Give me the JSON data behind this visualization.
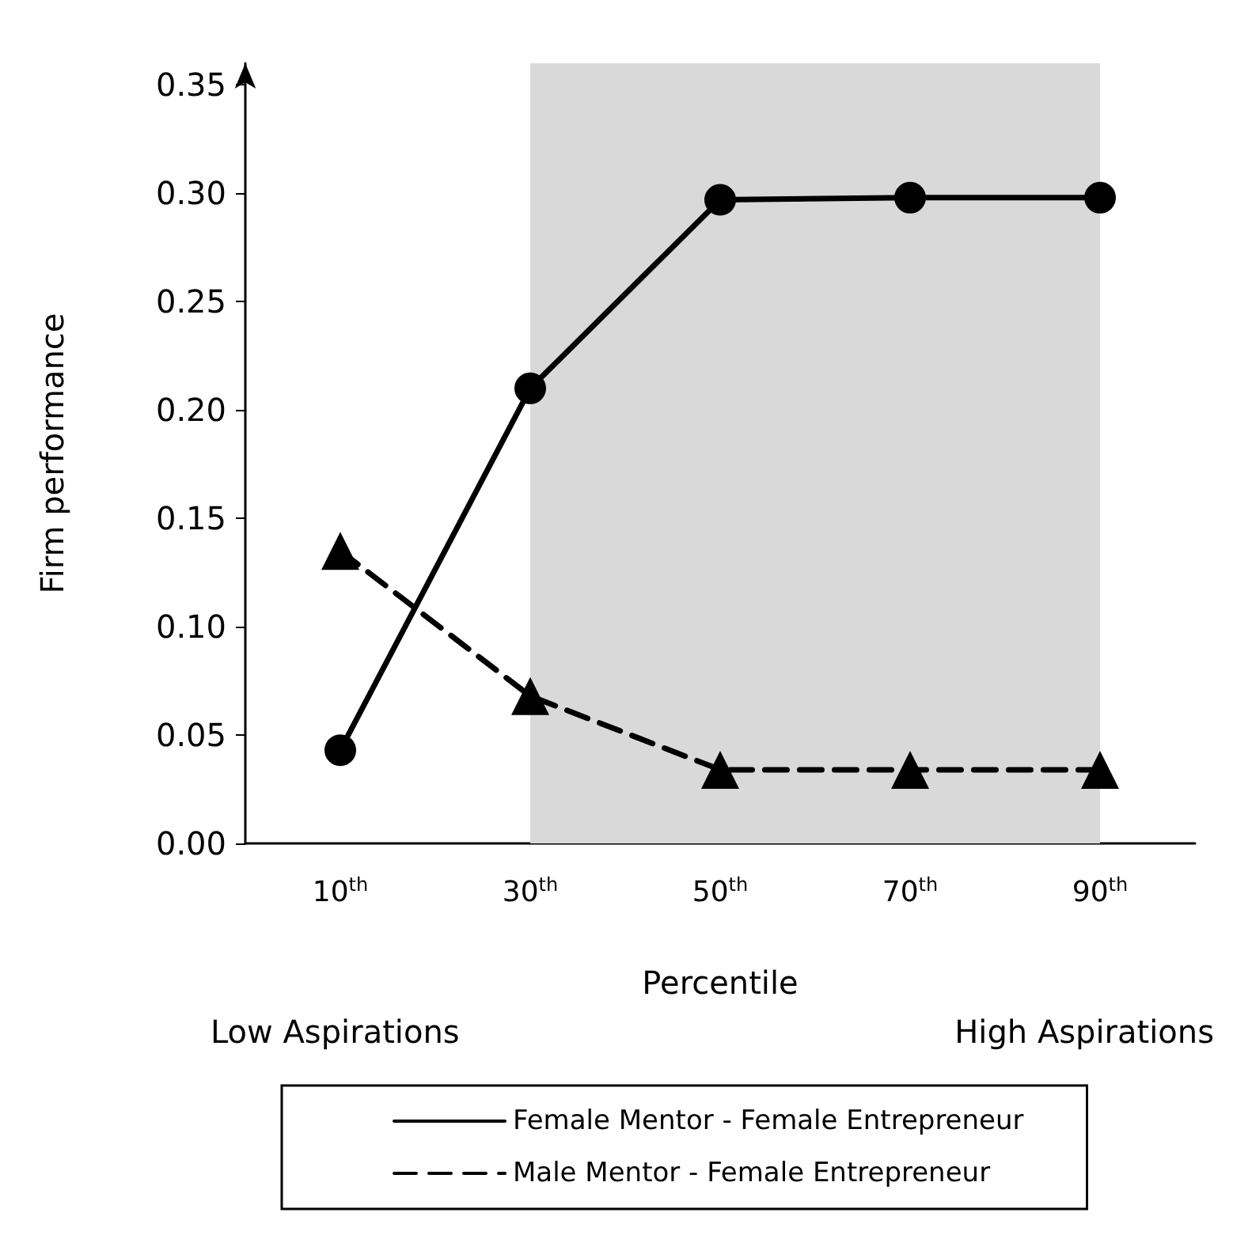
{
  "chart_data": {
    "type": "line",
    "xlabel": "Percentile",
    "ylabel": "Firm performance",
    "categories": [
      "10$^{th}$",
      "30$^{th}$",
      "50$^{th}$",
      "70$^{th}$",
      "90$^{th}$"
    ],
    "series": [
      {
        "name": "Female Mentor - Female Entrepreneur",
        "color": "#000000",
        "marker": "circle",
        "line_style": "solid",
        "values": [
          0.043,
          0.21,
          0.297,
          0.298,
          0.298
        ]
      },
      {
        "name": "Male Mentor - Female Entrepreneur",
        "color": "#000000",
        "marker": "triangle",
        "line_style": "dashed",
        "values": [
          0.135,
          0.068,
          0.034,
          0.034,
          0.034
        ]
      }
    ],
    "ylim": [
      0,
      0.36
    ],
    "yticks": [
      {
        "value": 0,
        "label": "0.00"
      },
      {
        "value": 0.05,
        "label": "0.05"
      },
      {
        "value": 0.1,
        "label": "0.10"
      },
      {
        "value": 0.15,
        "label": "0.15"
      },
      {
        "value": 0.2,
        "label": "0.20"
      },
      {
        "value": 0.25,
        "label": "0.25"
      },
      {
        "value": 0.3,
        "label": "0.30"
      },
      {
        "value": 0.35,
        "label": "0.35"
      }
    ],
    "bands": [
      {
        "axis": "x",
        "from": "30$^{th}$",
        "to": "90$^{th}$",
        "color": "#d9d9d9"
      }
    ],
    "annotations": [
      "Low Aspirations",
      "High Aspirations"
    ],
    "grid": false,
    "legend": "bottom"
  }
}
